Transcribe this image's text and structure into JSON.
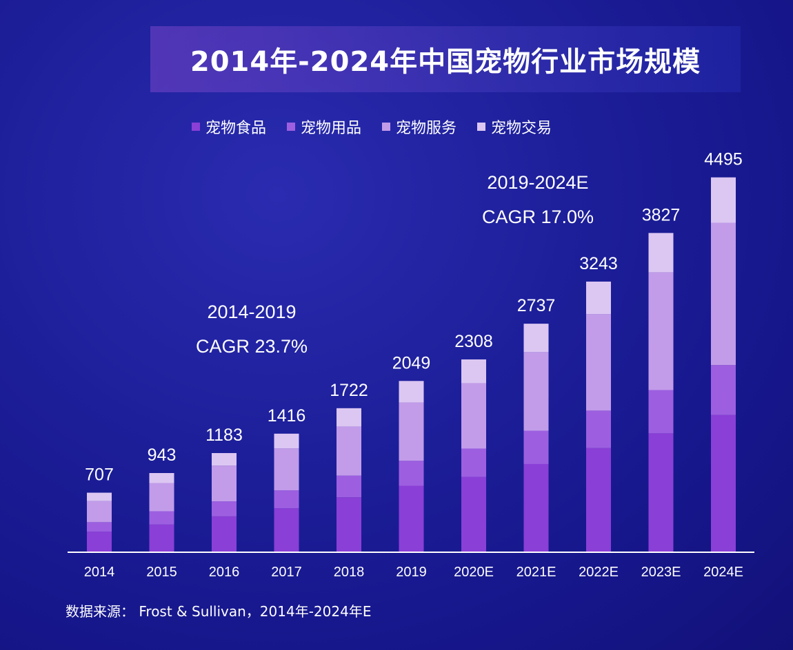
{
  "title": "2014年-2024年中国宠物行业市场规模",
  "legend": [
    {
      "label": "宠物食品",
      "color": "#8a3fd6"
    },
    {
      "label": "宠物用品",
      "color": "#9d5fe0"
    },
    {
      "label": "宠物服务",
      "color": "#c29ce9"
    },
    {
      "label": "宠物交易",
      "color": "#dcc7f2"
    }
  ],
  "annotations": {
    "cagr1_line1": "2014-2019",
    "cagr1_line2": "CAGR 23.7%",
    "cagr2_line1": "2019-2024E",
    "cagr2_line2": "CAGR 17.0%"
  },
  "source": "数据来源：  Frost & Sullivan，2014年-2024年E",
  "chart_data": {
    "type": "bar",
    "stacked": true,
    "title": "2014年-2024年中国宠物行业市场规模",
    "categories": [
      "2014",
      "2015",
      "2016",
      "2017",
      "2018",
      "2019",
      "2020E",
      "2021E",
      "2022E",
      "2023E",
      "2024E"
    ],
    "totals": [
      707,
      943,
      1183,
      1416,
      1722,
      2049,
      2308,
      2737,
      3243,
      3827,
      4495
    ],
    "series": [
      {
        "name": "宠物食品",
        "values": [
          238,
          324,
          423,
          520,
          652,
          790,
          897,
          1051,
          1243,
          1420,
          1640
        ]
      },
      {
        "name": "宠物用品",
        "values": [
          115,
          160,
          180,
          215,
          260,
          300,
          340,
          400,
          450,
          520,
          600
        ]
      },
      {
        "name": "宠物服务",
        "values": [
          254,
          339,
          430,
          505,
          590,
          700,
          785,
          945,
          1160,
          1415,
          1710
        ]
      },
      {
        "name": "宠物交易",
        "values": [
          100,
          120,
          150,
          176,
          220,
          259,
          286,
          341,
          390,
          472,
          545
        ]
      }
    ],
    "ylim": [
      0,
      4500
    ],
    "grid": false,
    "legend_position": "top"
  }
}
